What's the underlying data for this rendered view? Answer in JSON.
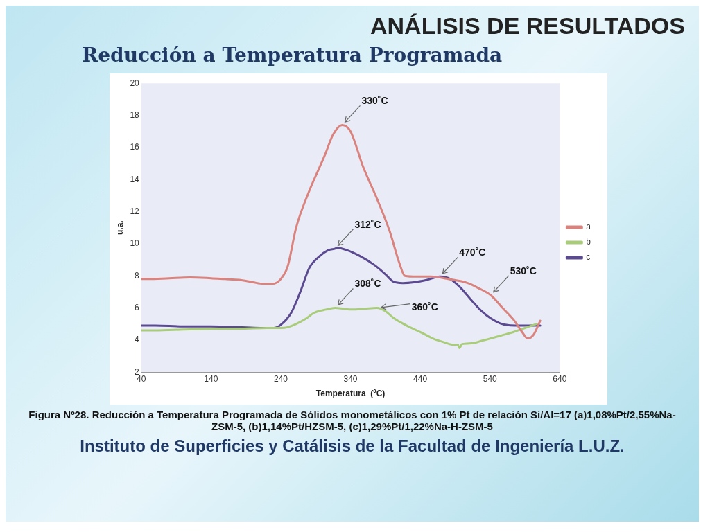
{
  "chart_data": {
    "type": "line",
    "title": "ANÁLISIS DE RESULTADOS",
    "subtitle": "Reducción a Temperatura Programada",
    "xlabel": "Temperatura  (ºC)",
    "ylabel": "u.a.",
    "xlim": [
      40,
      640
    ],
    "xticks": [
      40,
      140,
      240,
      340,
      440,
      540,
      640
    ],
    "ylim": [
      2,
      20
    ],
    "yticks": [
      2,
      4,
      6,
      8,
      10,
      12,
      14,
      16,
      18,
      20
    ],
    "grid": false,
    "legend": "right",
    "marker": "none",
    "line_style": "solid",
    "series": [
      {
        "name": "a",
        "color": "#d9827e",
        "x": [
          40,
          50,
          80,
          110,
          140,
          160,
          180,
          200,
          215,
          228,
          240,
          250,
          262,
          280,
          303,
          315,
          328,
          340,
          358,
          378,
          396,
          410,
          418,
          435,
          455,
          480,
          508,
          525,
          541,
          558,
          574,
          586,
          594,
          602,
          612
        ],
        "values": [
          7.8,
          7.8,
          7.85,
          7.9,
          7.85,
          7.8,
          7.75,
          7.6,
          7.5,
          7.5,
          7.8,
          8.6,
          11.0,
          13.2,
          15.5,
          16.8,
          17.4,
          17.0,
          14.8,
          12.8,
          10.8,
          8.8,
          8.0,
          7.95,
          7.95,
          7.8,
          7.55,
          7.2,
          6.8,
          6.0,
          5.25,
          4.5,
          4.1,
          4.3,
          5.2
        ]
      },
      {
        "name": "b",
        "color": "#a9cc7a",
        "x": [
          40,
          60,
          100,
          140,
          180,
          220,
          240,
          250,
          261,
          275,
          288,
          305,
          318,
          330,
          341,
          360,
          378,
          390,
          401,
          412,
          425,
          440,
          458,
          475,
          488,
          494,
          496,
          500,
          514,
          528,
          541,
          558,
          574,
          590,
          607
        ],
        "values": [
          4.6,
          4.6,
          4.65,
          4.7,
          4.7,
          4.75,
          4.75,
          4.8,
          4.98,
          5.3,
          5.7,
          5.9,
          6.0,
          5.95,
          5.9,
          5.95,
          6.0,
          5.8,
          5.4,
          5.1,
          4.8,
          4.5,
          4.1,
          3.85,
          3.7,
          3.7,
          3.5,
          3.75,
          3.8,
          3.95,
          4.1,
          4.3,
          4.5,
          4.75,
          5.0
        ]
      },
      {
        "name": "c",
        "color": "#5b4a8f",
        "x": [
          40,
          60,
          100,
          140,
          180,
          210,
          230,
          240,
          255,
          268,
          281,
          295,
          308,
          318,
          321,
          335,
          355,
          375,
          390,
          401,
          415,
          431,
          450,
          468,
          483,
          498,
          513,
          528,
          541,
          554,
          567,
          580,
          595,
          612
        ],
        "values": [
          4.9,
          4.9,
          4.85,
          4.85,
          4.8,
          4.75,
          4.75,
          4.95,
          5.7,
          7.0,
          8.5,
          9.2,
          9.6,
          9.7,
          9.75,
          9.6,
          9.2,
          8.65,
          8.1,
          7.65,
          7.55,
          7.6,
          7.75,
          7.95,
          7.8,
          7.25,
          6.5,
          5.8,
          5.35,
          5.05,
          4.92,
          4.9,
          4.9,
          4.9
        ]
      }
    ],
    "annotations": [
      {
        "text": "330˚C",
        "x": 328,
        "y": 17.4
      },
      {
        "text": "312˚C",
        "x": 318,
        "y": 9.7
      },
      {
        "text": "308˚C",
        "x": 318,
        "y": 6.0
      },
      {
        "text": "360˚C",
        "x": 378,
        "y": 6.0
      },
      {
        "text": "470˚C",
        "x": 468,
        "y": 7.95
      },
      {
        "text": "530˚C",
        "x": 541,
        "y": 6.8
      },
      "Figura Nº28. Reducción a Temperatura Programada de Sólidos monometálicos con 1% Pt de relación Si/Al=17 (a)1,08%Pt/2,55%Na-ZSM-5, (b)1,14%Pt/HZSM-5, (c)1,29%Pt/1,22%Na-H-ZSM-5",
      "Instituto de Superficies y Catálisis de la Facultad de Ingeniería L.U.Z."
    ]
  }
}
